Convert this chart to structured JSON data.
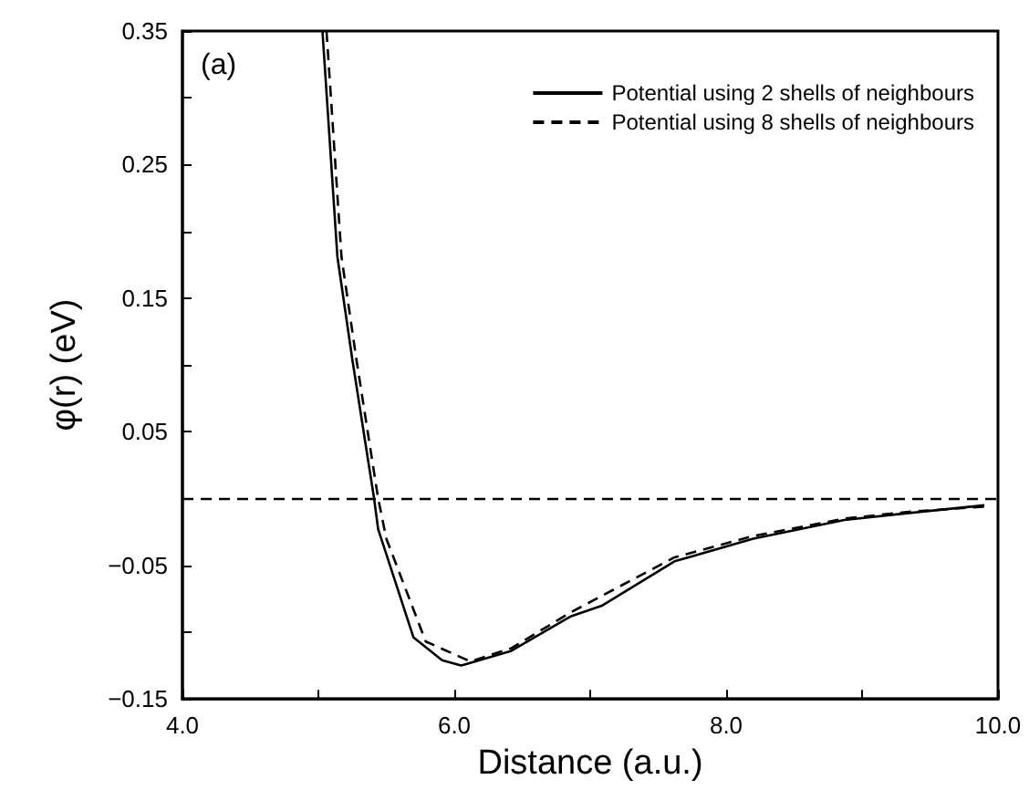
{
  "chart_data": {
    "type": "line",
    "xlabel": "Distance (a.u.)",
    "ylabel": "φ(r) (eV)",
    "annotations": [
      "(a)"
    ],
    "xlim": [
      4,
      10
    ],
    "ylim": [
      -0.15,
      0.35
    ],
    "xticks": [
      {
        "value": 4,
        "label": "4.0"
      },
      {
        "value": 5,
        "label": null
      },
      {
        "value": 6,
        "label": "6.0"
      },
      {
        "value": 7,
        "label": null
      },
      {
        "value": 8,
        "label": "8.0"
      },
      {
        "value": 9,
        "label": null
      },
      {
        "value": 10,
        "label": "10.0"
      }
    ],
    "yticks": [
      {
        "value": -0.15,
        "label": "−0.15"
      },
      {
        "value": -0.1,
        "label": null
      },
      {
        "value": -0.05,
        "label": "−0.05"
      },
      {
        "value": 0,
        "label": null
      },
      {
        "value": 0.05,
        "label": "0.05"
      },
      {
        "value": 0.1,
        "label": null
      },
      {
        "value": 0.15,
        "label": "0.15"
      },
      {
        "value": 0.2,
        "label": null
      },
      {
        "value": 0.25,
        "label": "0.25"
      },
      {
        "value": 0.3,
        "label": null
      },
      {
        "value": 0.35,
        "label": "0.35"
      }
    ],
    "grid": false,
    "legend": "top right",
    "marker": "none",
    "ref_lines": [
      {
        "axis": "y",
        "value": 0,
        "color": "#000000",
        "line_style": "dashed"
      }
    ],
    "series": [
      {
        "name": "Potential using 2 shells of neighbours",
        "color": "#000000",
        "line_style": "solid",
        "x": [
          5.03,
          5.14,
          5.25,
          5.41,
          5.44,
          5.7,
          5.91,
          6.05,
          6.42,
          6.86,
          7.09,
          7.62,
          8.2,
          8.87,
          9.33,
          9.9
        ],
        "values": [
          0.35,
          0.181,
          0.104,
          0,
          -0.023,
          -0.104,
          -0.121,
          -0.125,
          -0.114,
          -0.088,
          -0.08,
          -0.047,
          -0.03,
          -0.016,
          -0.011,
          -0.005
        ]
      },
      {
        "name": "Potential using 8 shells of neighbours",
        "color": "#000000",
        "line_style": "dashed",
        "x": [
          5.06,
          5.17,
          5.28,
          5.44,
          5.5,
          5.79,
          6.12,
          6.42,
          6.86,
          7.62,
          8.2,
          8.87,
          9.33,
          9.9
        ],
        "values": [
          0.35,
          0.181,
          0.104,
          0,
          -0.03,
          -0.107,
          -0.122,
          -0.112,
          -0.085,
          -0.044,
          -0.028,
          -0.015,
          -0.01,
          -0.006
        ]
      }
    ]
  }
}
